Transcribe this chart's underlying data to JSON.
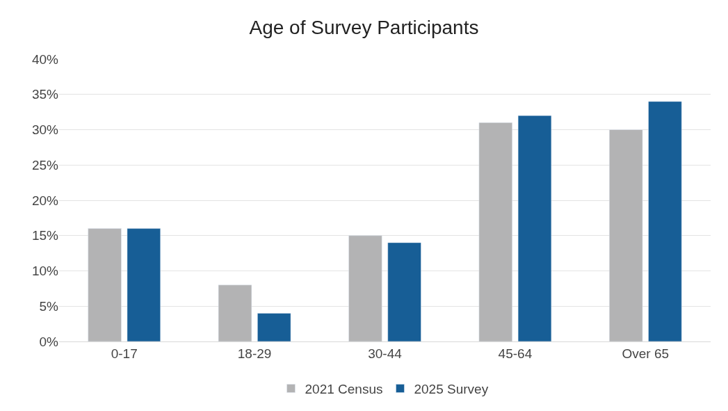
{
  "chart_data": {
    "type": "bar",
    "title": "Age of Survey Participants",
    "categories": [
      "0-17",
      "18-29",
      "30-44",
      "45-64",
      "Over 65"
    ],
    "series": [
      {
        "name": "2021 Census",
        "color": "#b3b3b4",
        "values": [
          16,
          8,
          15,
          31,
          30
        ]
      },
      {
        "name": "2025 Survey",
        "color": "#175e96",
        "values": [
          16,
          4,
          14,
          32,
          34
        ]
      }
    ],
    "ylim": [
      0,
      40
    ],
    "yticks": [
      {
        "value": 0,
        "label": "0%"
      },
      {
        "value": 5,
        "label": "5%"
      },
      {
        "value": 10,
        "label": "10%"
      },
      {
        "value": 15,
        "label": "15%"
      },
      {
        "value": 20,
        "label": "20%"
      },
      {
        "value": 25,
        "label": "25%"
      },
      {
        "value": 30,
        "label": "30%"
      },
      {
        "value": 35,
        "label": "35%"
      },
      {
        "value": 40,
        "label": "40%"
      }
    ],
    "grid": "y",
    "legend": "bottom"
  }
}
